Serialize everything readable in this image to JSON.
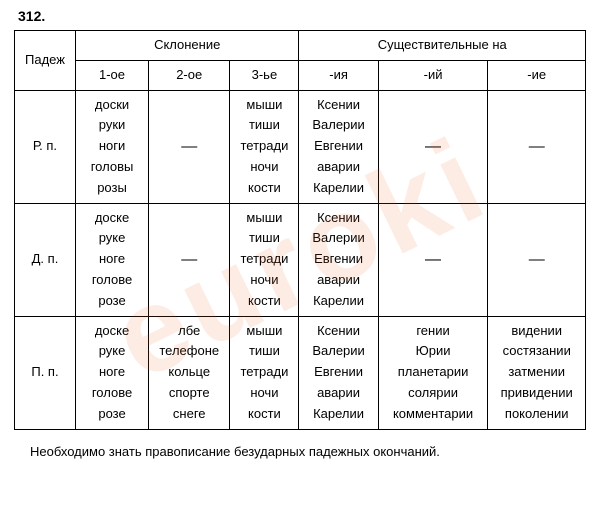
{
  "exercise_number": "312.",
  "headers": {
    "case": "Падеж",
    "declension": "Склонение",
    "nouns_in": "Существительные на",
    "decl_cols": [
      "1-ое",
      "2-ое",
      "3-ье"
    ],
    "noun_cols": [
      "-ия",
      "-ий",
      "-ие"
    ]
  },
  "rows": [
    {
      "case": "Р. п.",
      "cells": {
        "d1": [
          "доски",
          "руки",
          "ноги",
          "головы",
          "розы"
        ],
        "d2": "—",
        "d3": [
          "мыши",
          "тиши",
          "тетради",
          "ночи",
          "кости"
        ],
        "n_iya": [
          "Ксении",
          "Валерии",
          "Евгении",
          "аварии",
          "Карелии"
        ],
        "n_iy": "—",
        "n_ie": "—"
      }
    },
    {
      "case": "Д. п.",
      "cells": {
        "d1": [
          "доске",
          "руке",
          "ноге",
          "голове",
          "розе"
        ],
        "d2": "—",
        "d3": [
          "мыши",
          "тиши",
          "тетради",
          "ночи",
          "кости"
        ],
        "n_iya": [
          "Ксении",
          "Валерии",
          "Евгении",
          "аварии",
          "Карелии"
        ],
        "n_iy": "—",
        "n_ie": "—"
      }
    },
    {
      "case": "П. п.",
      "cells": {
        "d1": [
          "доске",
          "руке",
          "ноге",
          "голове",
          "розе"
        ],
        "d2": [
          "лбе",
          "телефоне",
          "кольце",
          "спорте",
          "снеге"
        ],
        "d3": [
          "мыши",
          "тиши",
          "тетради",
          "ночи",
          "кости"
        ],
        "n_iya": [
          "Ксении",
          "Валерии",
          "Евгении",
          "аварии",
          "Карелии"
        ],
        "n_iy": [
          "гении",
          "Юрии",
          "планетарии",
          "солярии",
          "комментарии"
        ],
        "n_ie": [
          "видении",
          "состязании",
          "затмении",
          "привидении",
          "поколении"
        ]
      }
    }
  ],
  "footer_note": "Необходимо знать правописание безударных падежных окончаний.",
  "watermark_text": "euroki",
  "colors": {
    "border": "#000000",
    "text": "#000000",
    "watermark": "rgba(236,99,34,0.12)",
    "background": "#ffffff"
  },
  "fonts": {
    "family": "Arial",
    "body_size_pt": 10,
    "watermark_size_pt": 90
  }
}
